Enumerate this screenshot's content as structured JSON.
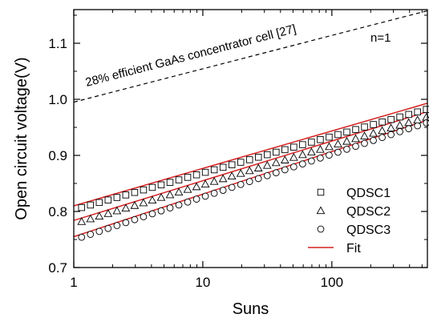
{
  "chart_data": {
    "type": "scatter",
    "xlabel": "Suns",
    "ylabel": "Open circuit voltage(V)",
    "xscale": "log",
    "xlim": [
      1,
      550
    ],
    "ylim": [
      0.7,
      1.16
    ],
    "xticks": [
      1,
      10,
      100
    ],
    "xtick_labels": [
      "1",
      "10",
      "100"
    ],
    "yticks": [
      0.7,
      0.8,
      0.9,
      1.0,
      1.1
    ],
    "ytick_labels": [
      "0.7",
      "0.8",
      "0.9",
      "1.0",
      "1.1"
    ],
    "grid": false,
    "legend_position": "lower-right",
    "annotations": [
      {
        "text": "28% efficient GaAs concentrator cell [27]"
      },
      {
        "text": "n=1"
      }
    ],
    "reference_line": {
      "style": "dashed",
      "color": "#000000",
      "x": [
        1,
        550
      ],
      "y": [
        0.995,
        1.158
      ]
    },
    "series": [
      {
        "name": "QDSC1",
        "marker": "square",
        "color": "#000000",
        "x_range": [
          1.15,
          540
        ],
        "y_range": [
          0.807,
          0.982
        ]
      },
      {
        "name": "QDSC2",
        "marker": "triangle",
        "color": "#000000",
        "x_range": [
          1.15,
          540
        ],
        "y_range": [
          0.782,
          0.968
        ]
      },
      {
        "name": "QDSC3",
        "marker": "circle",
        "color": "#000000",
        "x_range": [
          1.15,
          540
        ],
        "y_range": [
          0.754,
          0.958
        ]
      },
      {
        "name": "Fit",
        "marker": "line",
        "color": "#d62020",
        "lines": [
          {
            "x": [
              1,
              550
            ],
            "y": [
              0.81,
              0.993
            ]
          },
          {
            "x": [
              1,
              550
            ],
            "y": [
              0.784,
              0.978
            ]
          },
          {
            "x": [
              1,
              550
            ],
            "y": [
              0.755,
              0.963
            ]
          }
        ]
      }
    ],
    "point_count": 40
  }
}
